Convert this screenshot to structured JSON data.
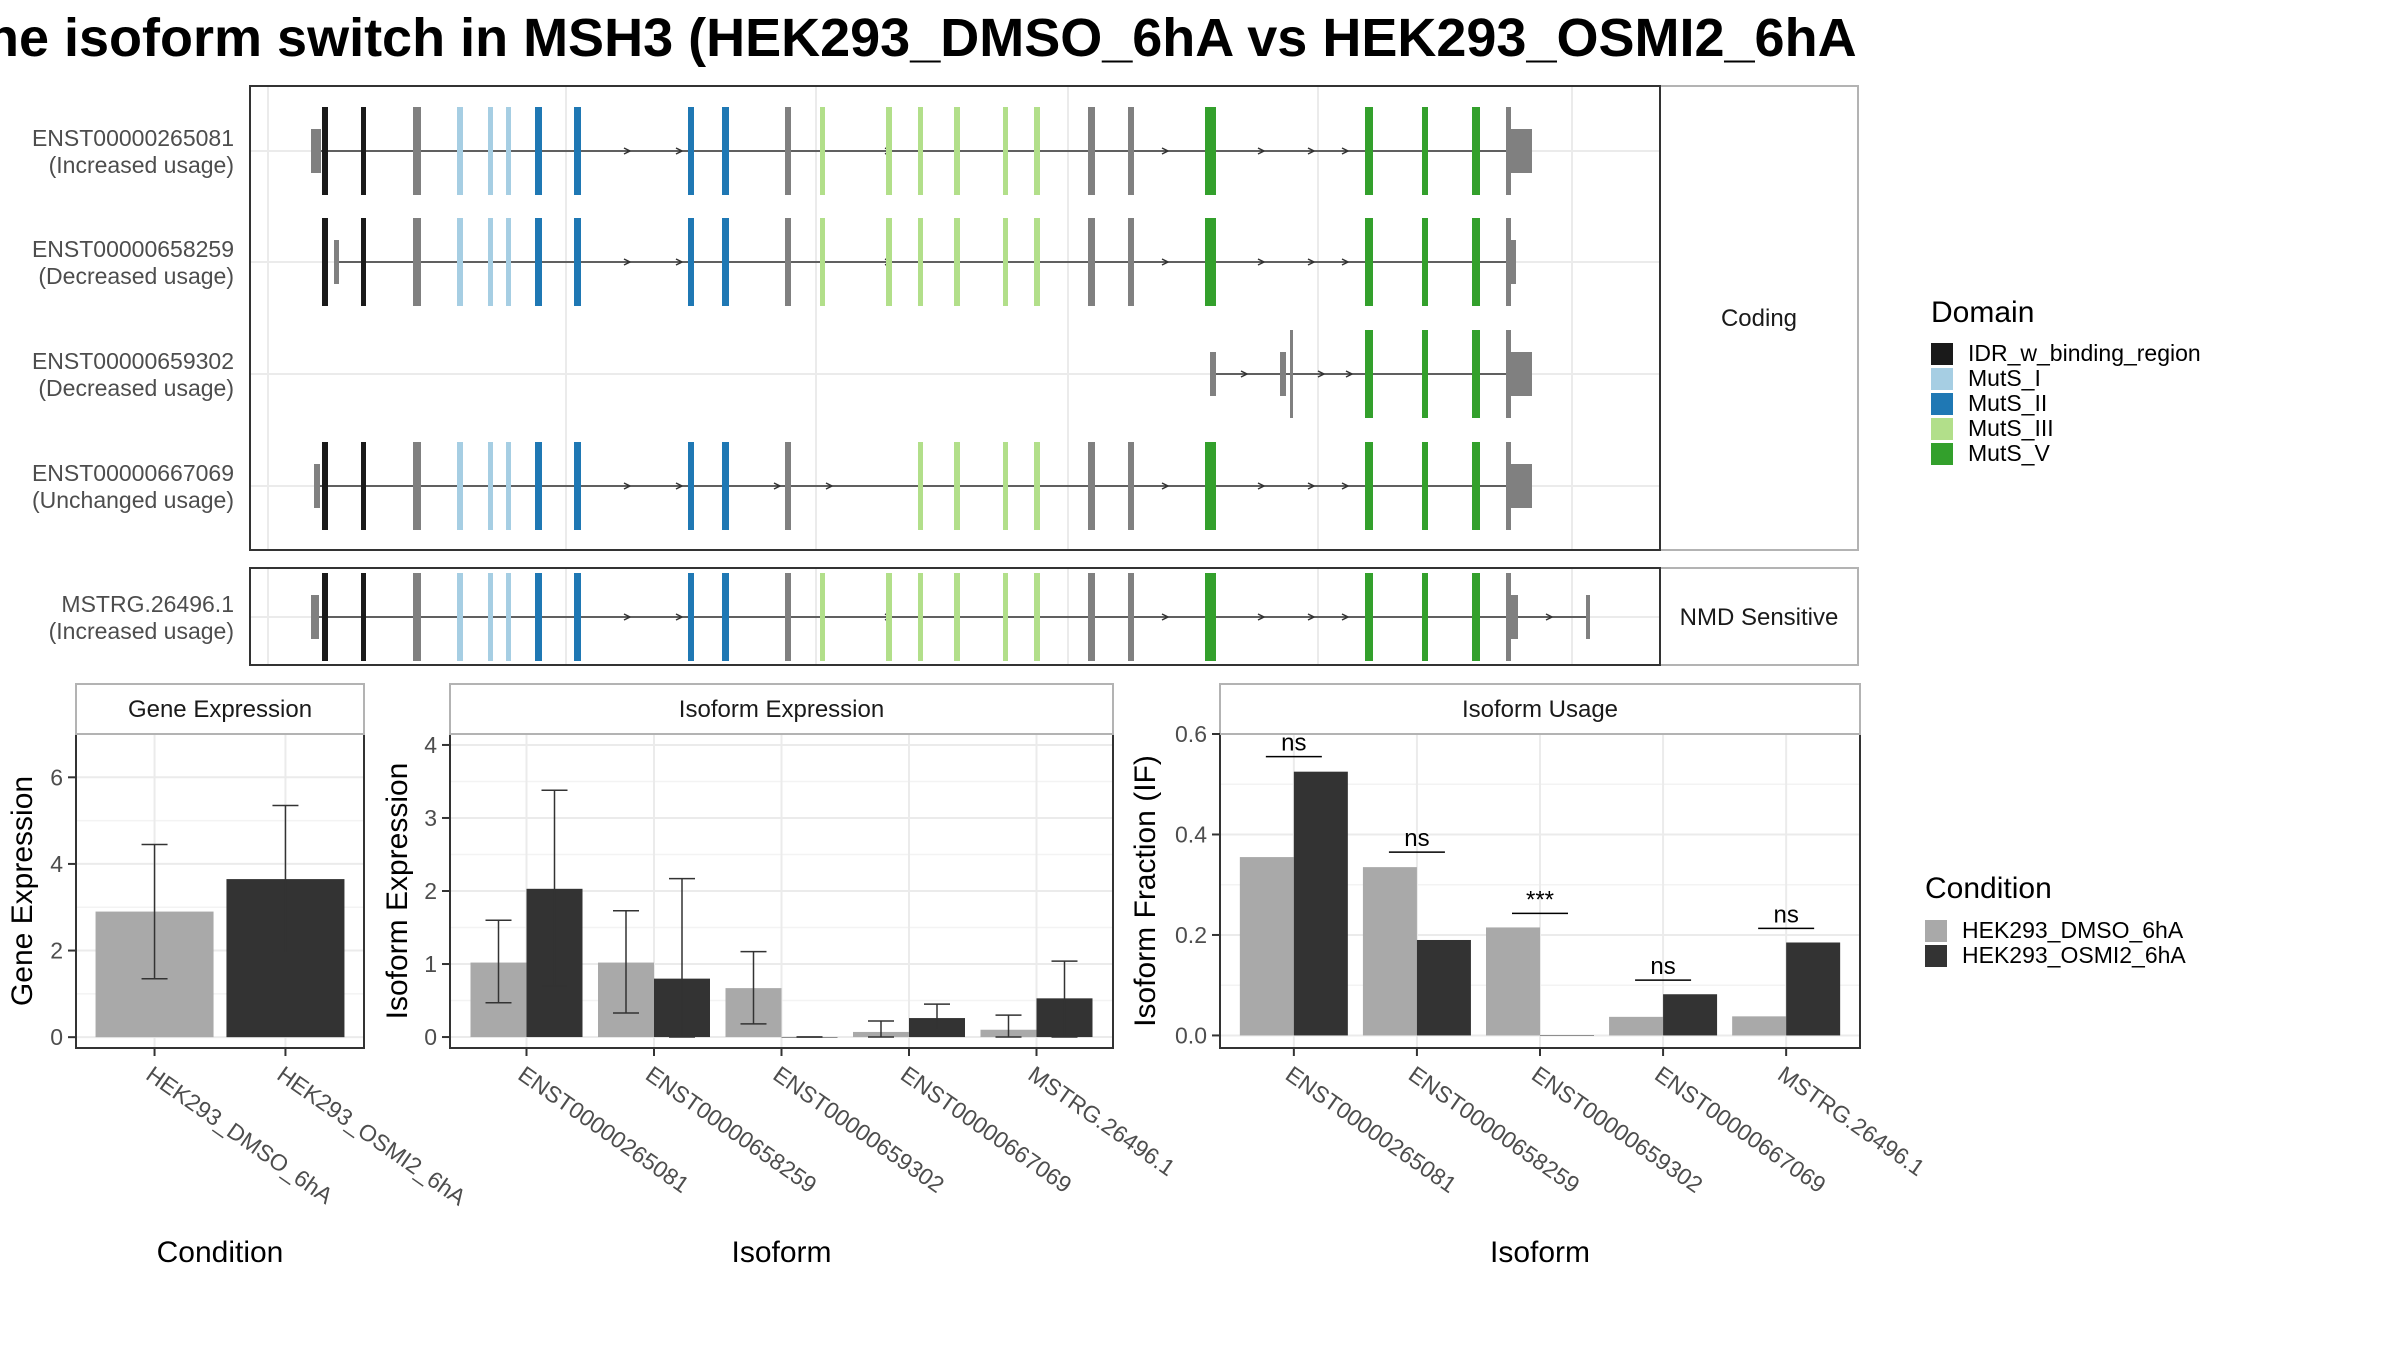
{
  "title": "he isoform switch in MSH3 (HEK293_DMSO_6hA vs HEK293_OSMI2_6hA",
  "colors": {
    "IDR_w_binding_region": "#1a1a1a",
    "MutS_I": "#a6cee3",
    "MutS_II": "#1f78b4",
    "MutS_III": "#b2df8a",
    "MutS_V": "#33a02c",
    "other_exon": "#808080",
    "HEK293_DMSO_6hA": "#a9a9a9",
    "HEK293_OSMI2_6hA": "#333333",
    "panel_border": "#333333",
    "grid": "#ebebeb"
  },
  "chart_data": [
    {
      "type": "gene_structure",
      "facets": [
        "Coding",
        "NMD Sensitive"
      ],
      "transcripts": [
        {
          "id": "ENST00000265081",
          "usage": "(Increased usage)",
          "facet": "Coding"
        },
        {
          "id": "ENST00000658259",
          "usage": "(Decreased usage)",
          "facet": "Coding"
        },
        {
          "id": "ENST00000659302",
          "usage": "(Decreased usage)",
          "facet": "Coding"
        },
        {
          "id": "ENST00000667069",
          "usage": "(Unchanged usage)",
          "facet": "Coding"
        },
        {
          "id": "MSTRG.26496.1",
          "usage": "(Increased usage)",
          "facet": "NMD Sensitive"
        }
      ],
      "legend": {
        "title": "Domain",
        "items": [
          "IDR_w_binding_region",
          "MutS_I",
          "MutS_II",
          "MutS_III",
          "MutS_V"
        ]
      }
    },
    {
      "type": "bar",
      "strip": "Gene Expression",
      "xlabel": "Condition",
      "ylabel": "Gene Expression",
      "ylim": [
        -0.25,
        7.0
      ],
      "yticks": [
        0,
        2,
        4,
        6
      ],
      "categories": [
        "HEK293_DMSO_6hA",
        "HEK293_OSMI2_6hA"
      ],
      "values": [
        2.9,
        3.65
      ],
      "err_low": [
        1.35,
        1.95
      ],
      "err_high": [
        4.45,
        5.35
      ]
    },
    {
      "type": "bar",
      "strip": "Isoform Expression",
      "xlabel": "Isoform",
      "ylabel": "Isoform Expression",
      "ylim": [
        -0.15,
        4.15
      ],
      "yticks": [
        0,
        1,
        2,
        3,
        4
      ],
      "categories": [
        "ENST00000265081",
        "ENST00000658259",
        "ENST00000659302",
        "ENST00000667069",
        "MSTRG.26496.1"
      ],
      "series": [
        {
          "name": "HEK293_DMSO_6hA",
          "values": [
            1.02,
            1.02,
            0.67,
            0.07,
            0.1
          ],
          "err_low": [
            0.47,
            0.33,
            0.18,
            0.0,
            0.0
          ],
          "err_high": [
            1.6,
            1.73,
            1.17,
            0.22,
            0.3
          ]
        },
        {
          "name": "HEK293_OSMI2_6hA",
          "values": [
            2.03,
            0.8,
            0.0,
            0.26,
            0.53
          ],
          "err_low": [
            0.7,
            0.0,
            0.0,
            0.1,
            0.0
          ],
          "err_high": [
            3.38,
            2.17,
            0.0,
            0.45,
            1.04
          ]
        }
      ]
    },
    {
      "type": "bar",
      "strip": "Isoform Usage",
      "xlabel": "Isoform",
      "ylabel": "Isoform Fraction (IF)",
      "ylim": [
        -0.025,
        0.6
      ],
      "yticks": [
        0.0,
        0.2,
        0.4,
        0.6
      ],
      "ytick_labels": [
        "0.0",
        "0.2",
        "0.4",
        "0.6"
      ],
      "categories": [
        "ENST00000265081",
        "ENST00000658259",
        "ENST00000659302",
        "ENST00000667069",
        "MSTRG.26496.1"
      ],
      "series": [
        {
          "name": "HEK293_DMSO_6hA",
          "values": [
            0.355,
            0.335,
            0.215,
            0.037,
            0.038
          ]
        },
        {
          "name": "HEK293_OSMI2_6hA",
          "values": [
            0.525,
            0.19,
            0.0,
            0.082,
            0.185
          ]
        }
      ],
      "significance": [
        "ns",
        "ns",
        "***",
        "ns",
        "ns"
      ],
      "sig_level": [
        0.555,
        0.365,
        0.243,
        0.11,
        0.213
      ]
    }
  ],
  "condition_legend": {
    "title": "Condition",
    "items": [
      "HEK293_DMSO_6hA",
      "HEK293_OSMI2_6hA"
    ]
  }
}
